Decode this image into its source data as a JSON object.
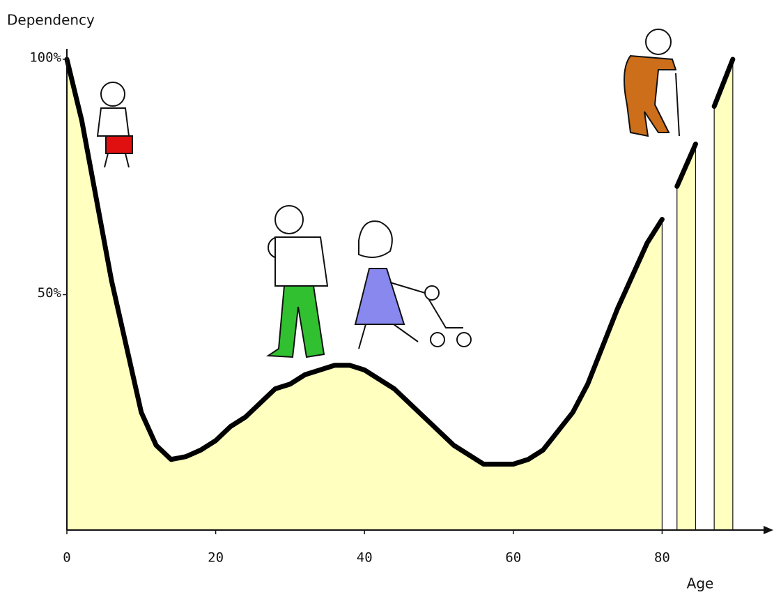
{
  "chart_data": {
    "type": "area",
    "y_label": "Dependency",
    "x_label": "Age",
    "x": [
      0,
      2,
      4,
      6,
      8,
      10,
      12,
      14,
      16,
      18,
      20,
      22,
      24,
      26,
      28,
      30,
      32,
      34,
      36,
      38,
      40,
      42,
      44,
      46,
      48,
      50,
      52,
      54,
      56,
      58,
      60,
      62,
      64,
      66,
      68,
      70,
      72,
      74,
      76,
      78,
      80,
      81,
      82,
      84.5,
      85.5,
      87,
      89.5
    ],
    "values": [
      100,
      87,
      70,
      53,
      39,
      25,
      18,
      15,
      15.6,
      17,
      19,
      22,
      24,
      27,
      30,
      31,
      33,
      34,
      35,
      35,
      34,
      32,
      30,
      27,
      24,
      21,
      18,
      16,
      14,
      14,
      14,
      15,
      17,
      21,
      25,
      31,
      39,
      47,
      54,
      61,
      66,
      null,
      73,
      82,
      null,
      90,
      100
    ],
    "fill_color": "#ffffc0",
    "line_color": "#000000",
    "xlim": [
      0,
      95
    ],
    "ylim": [
      0,
      100
    ],
    "xticks": [
      0,
      20,
      40,
      60,
      80
    ],
    "yticks": [
      {
        "value": 50,
        "label": "50%"
      },
      {
        "value": 100,
        "label": "100%"
      }
    ]
  }
}
